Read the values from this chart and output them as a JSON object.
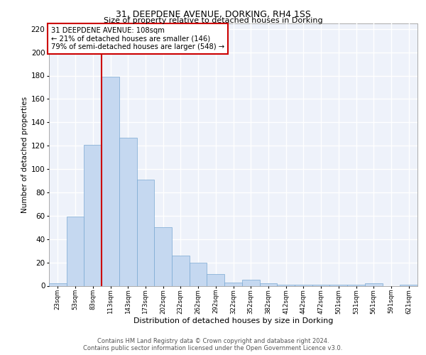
{
  "title1": "31, DEEPDENE AVENUE, DORKING, RH4 1SS",
  "title2": "Size of property relative to detached houses in Dorking",
  "xlabel": "Distribution of detached houses by size in Dorking",
  "ylabel": "Number of detached properties",
  "footnote1": "Contains HM Land Registry data © Crown copyright and database right 2024.",
  "footnote2": "Contains public sector information licensed under the Open Government Licence v3.0.",
  "annotation_line1": "31 DEEPDENE AVENUE: 108sqm",
  "annotation_line2": "← 21% of detached houses are smaller (146)",
  "annotation_line3": "79% of semi-detached houses are larger (548) →",
  "property_sqm": 108,
  "bin_labels": [
    "23sqm",
    "53sqm",
    "83sqm",
    "113sqm",
    "143sqm",
    "173sqm",
    "202sqm",
    "232sqm",
    "262sqm",
    "292sqm",
    "322sqm",
    "352sqm",
    "382sqm",
    "412sqm",
    "442sqm",
    "472sqm",
    "501sqm",
    "531sqm",
    "561sqm",
    "591sqm",
    "621sqm"
  ],
  "bar_values": [
    2,
    59,
    121,
    179,
    127,
    91,
    50,
    26,
    20,
    10,
    3,
    5,
    2,
    1,
    1,
    1,
    1,
    1,
    2,
    0,
    1
  ],
  "bar_color": "#c5d8f0",
  "bar_edge_color": "#7aa8d2",
  "vline_color": "#cc0000",
  "box_color": "#cc0000",
  "background_color": "#eef2fa",
  "grid_color": "#ffffff",
  "ylim": [
    0,
    225
  ],
  "yticks": [
    0,
    20,
    40,
    60,
    80,
    100,
    120,
    140,
    160,
    180,
    200,
    220
  ]
}
